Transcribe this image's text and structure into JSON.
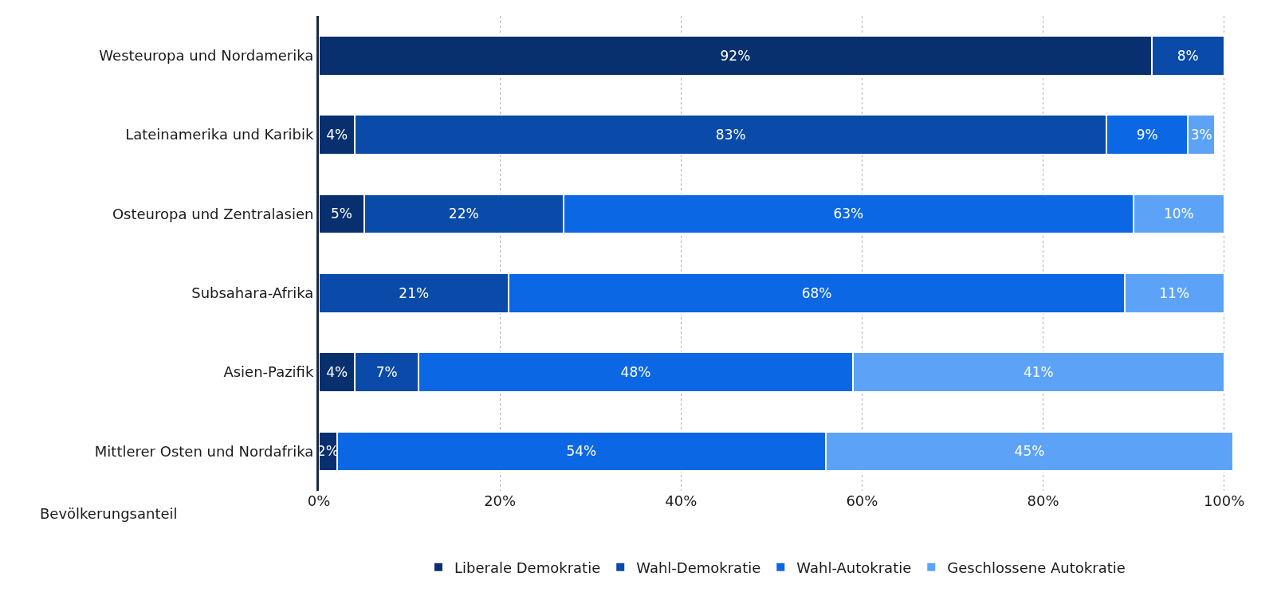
{
  "chart_data": {
    "type": "bar",
    "orientation": "horizontal",
    "stacked": true,
    "categories": [
      "Westeuropa und Nordamerika",
      "Lateinamerika und Karibik",
      "Osteuropa und Zentralasien",
      "Subsahara-Afrika",
      "Asien-Pazifik",
      "Mittlerer Osten und Nordafrika"
    ],
    "series": [
      {
        "name": "Liberale Demokratie",
        "color": "#08306f",
        "values": [
          92,
          4,
          5,
          null,
          4,
          2
        ],
        "value_labels": [
          "92%",
          "4%",
          "5%",
          null,
          "4%",
          "2%"
        ]
      },
      {
        "name": "Wahl-Demokratie",
        "color": "#0a4aa8",
        "values": [
          8,
          83,
          22,
          21,
          7,
          null
        ],
        "value_labels": [
          "8%",
          "83%",
          "22%",
          "21%",
          "7%",
          null
        ]
      },
      {
        "name": "Wahl-Autokratie",
        "color": "#0b67e3",
        "values": [
          null,
          9,
          63,
          68,
          48,
          54
        ],
        "value_labels": [
          null,
          "9%",
          "63%",
          "68%",
          "48%",
          "54%"
        ]
      },
      {
        "name": "Geschlossene Autokratie",
        "color": "#5ca3f7",
        "values": [
          null,
          3,
          10,
          11,
          41,
          45
        ],
        "value_labels": [
          null,
          "3%",
          "10%",
          "11%",
          "41%",
          "45%"
        ]
      }
    ],
    "xlabel": "Bevölkerungsanteil",
    "xlim": [
      0,
      101
    ],
    "xticks": [
      {
        "value": 0,
        "label": "0%"
      },
      {
        "value": 20,
        "label": "20%"
      },
      {
        "value": 40,
        "label": "40%"
      },
      {
        "value": 60,
        "label": "60%"
      },
      {
        "value": 80,
        "label": "80%"
      },
      {
        "value": 100,
        "label": "100%"
      }
    ],
    "grid": "x",
    "legend": "bottom"
  }
}
